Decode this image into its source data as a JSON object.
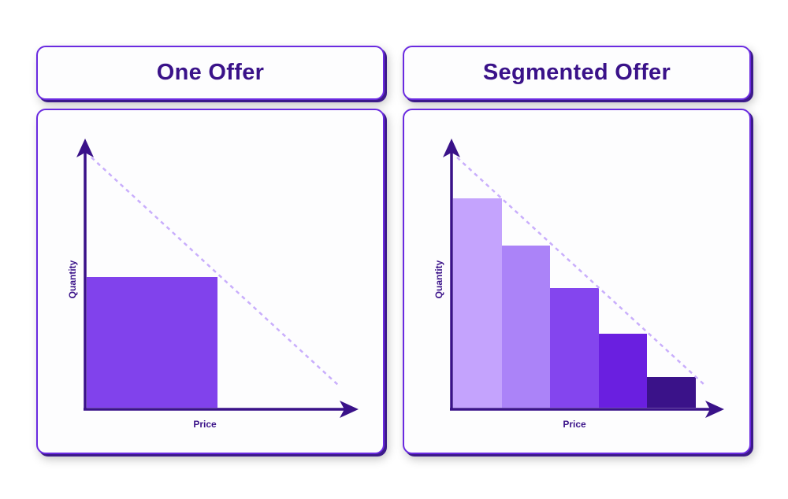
{
  "panels": [
    {
      "title": "One Offer",
      "x_label": "Price",
      "y_label": "Quantity"
    },
    {
      "title": "Segmented Offer",
      "x_label": "Price",
      "y_label": "Quantity"
    }
  ],
  "colors": {
    "border": "#6a2ae0",
    "axis": "#3a1289",
    "demand_line": "#c9aefc",
    "single_bar": "#8142ec",
    "segments": [
      "#c4a3fd",
      "#ab83f8",
      "#8445ee",
      "#6a1fe0",
      "#3a1289"
    ]
  }
}
